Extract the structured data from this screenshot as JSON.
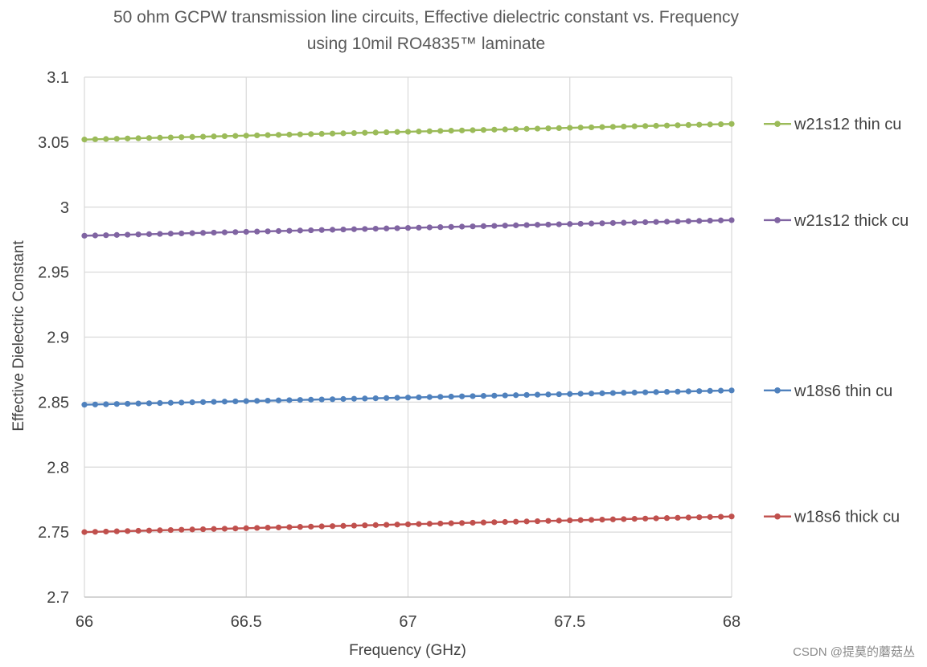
{
  "chart_data": {
    "type": "line",
    "title_lines": [
      "50 ohm GCPW transmission line circuits, Effective  dielectric constant vs. Frequency",
      "using 10mil RO4835™ laminate"
    ],
    "xlabel": "Frequency (GHz)",
    "ylabel": "Effective Dielectric Constant",
    "xlim": [
      66,
      68
    ],
    "ylim": [
      2.7,
      3.1
    ],
    "x_ticks": [
      66,
      66.5,
      67,
      67.5,
      68
    ],
    "x_tick_labels": [
      "66",
      "66.5",
      "67",
      "67.5",
      "68"
    ],
    "y_ticks": [
      2.7,
      2.75,
      2.8,
      2.85,
      2.9,
      2.95,
      3.0,
      3.05,
      3.1
    ],
    "y_tick_labels": [
      "2.7",
      "2.75",
      "2.8",
      "2.85",
      "2.9",
      "2.95",
      "3",
      "3.05",
      "3.1"
    ],
    "grid": true,
    "legend_position": "right",
    "x_start": 66,
    "x_step": 0.0333,
    "num_points": 61,
    "series": [
      {
        "name": "w21s12 thin cu",
        "color": "#9BBB59",
        "start": 3.052,
        "end": 3.064
      },
      {
        "name": "w21s12 thick cu",
        "color": "#8064A2",
        "start": 2.978,
        "end": 2.99
      },
      {
        "name": "w18s6 thin cu",
        "color": "#4F81BD",
        "start": 2.848,
        "end": 2.859
      },
      {
        "name": "w18s6 thick cu",
        "color": "#C0504D",
        "start": 2.75,
        "end": 2.762
      }
    ]
  },
  "watermark": "CSDN @提莫的蘑菇丛"
}
